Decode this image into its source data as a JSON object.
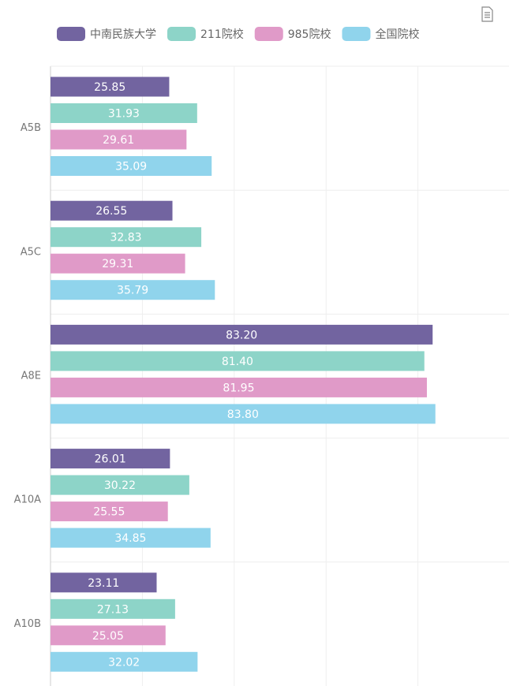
{
  "chart_data": {
    "type": "bar",
    "orientation": "horizontal",
    "categories": [
      "A5B",
      "A5C",
      "A8E",
      "A10A",
      "A10B"
    ],
    "series": [
      {
        "name": "中南民族大学",
        "color": "#7264a0",
        "values": [
          25.85,
          26.55,
          83.2,
          26.01,
          23.11
        ],
        "value_labels": [
          "25.85",
          "26.55",
          "83.20",
          "26.01",
          "23.11"
        ]
      },
      {
        "name": "211院校",
        "color": "#8dd4c8",
        "values": [
          31.93,
          32.83,
          81.4,
          30.22,
          27.13
        ],
        "value_labels": [
          "31.93",
          "32.83",
          "81.40",
          "30.22",
          "27.13"
        ]
      },
      {
        "name": "985院校",
        "color": "#e09ac8",
        "values": [
          29.61,
          29.31,
          81.95,
          25.55,
          25.05
        ],
        "value_labels": [
          "29.61",
          "29.31",
          "81.95",
          "25.55",
          "25.05"
        ]
      },
      {
        "name": "全国院校",
        "color": "#90d4ec",
        "values": [
          35.09,
          35.79,
          83.8,
          34.85,
          32.02
        ],
        "value_labels": [
          "35.09",
          "35.79",
          "83.80",
          "34.85",
          "32.02"
        ]
      }
    ],
    "xlim": [
      0,
      100
    ],
    "xticks": [
      0,
      20,
      40,
      60,
      80,
      100
    ],
    "grid": true,
    "legend": "top"
  }
}
